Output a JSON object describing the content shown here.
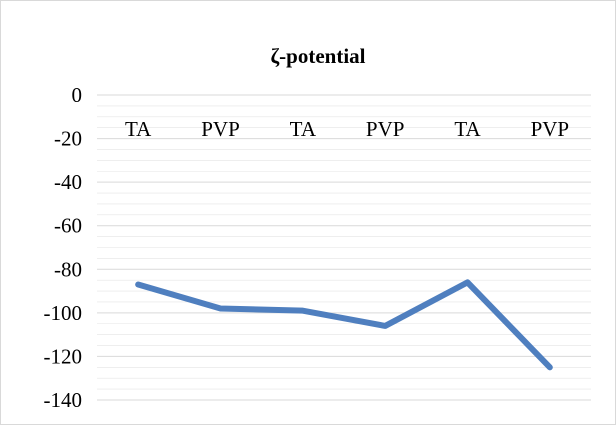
{
  "chart_data": {
    "type": "line",
    "title": "ζ-potential",
    "categories": [
      "TA",
      "PVP",
      "TA",
      "PVP",
      "TA",
      "PVP"
    ],
    "series": [
      {
        "values": [
          -87,
          -98,
          -99,
          -106,
          -86,
          -125
        ]
      }
    ],
    "yticks": [
      0,
      -20,
      -40,
      -60,
      -80,
      -100,
      -120,
      -140
    ],
    "ylim": [
      -140,
      0
    ],
    "xlabel": "",
    "ylabel": "",
    "grid": true,
    "minor_grid": true,
    "line_color": "#4f7fbf",
    "grid_color": "#d9d9d9"
  }
}
